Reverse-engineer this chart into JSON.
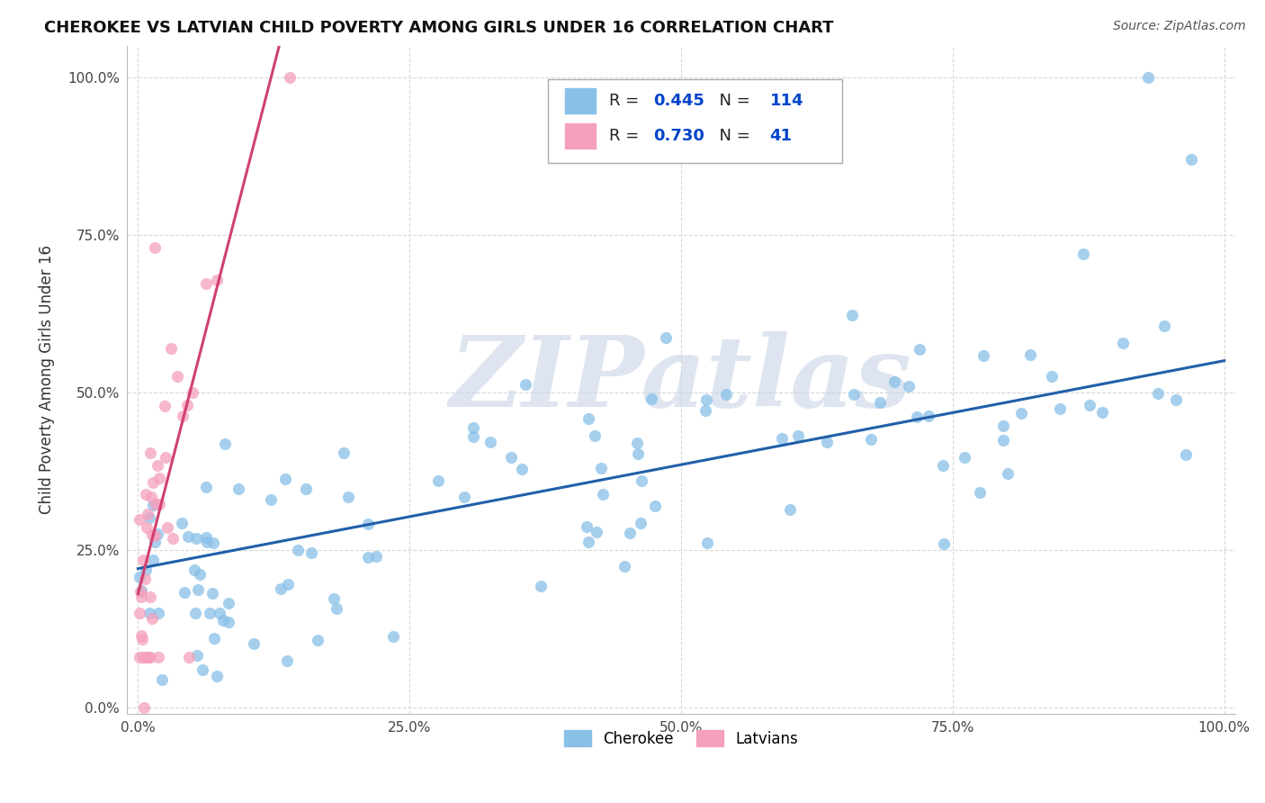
{
  "title": "CHEROKEE VS LATVIAN CHILD POVERTY AMONG GIRLS UNDER 16 CORRELATION CHART",
  "source": "Source: ZipAtlas.com",
  "ylabel": "Child Poverty Among Girls Under 16",
  "xlabel": "",
  "xlim": [
    -0.01,
    1.01
  ],
  "ylim": [
    -0.01,
    1.05
  ],
  "xticks": [
    0.0,
    0.25,
    0.5,
    0.75,
    1.0
  ],
  "yticks": [
    0.0,
    0.25,
    0.5,
    0.75,
    1.0
  ],
  "xticklabels": [
    "0.0%",
    "25.0%",
    "50.0%",
    "75.0%",
    "100.0%"
  ],
  "yticklabels": [
    "0.0%",
    "25.0%",
    "50.0%",
    "75.0%",
    "100.0%"
  ],
  "cherokee_color": "#88c0e8",
  "latvian_color": "#f5a0bc",
  "cherokee_R": 0.445,
  "cherokee_N": 114,
  "latvian_R": 0.73,
  "latvian_N": 41,
  "cherokee_line_color": "#2060a8",
  "latvian_line_color": "#d04070",
  "watermark": "ZIPatlas",
  "watermark_color": "#c8d4e8",
  "background_color": "#ffffff",
  "grid_color": "#d8d8d8",
  "legend_R_color": "#0044cc",
  "legend_N_color": "#0044cc"
}
